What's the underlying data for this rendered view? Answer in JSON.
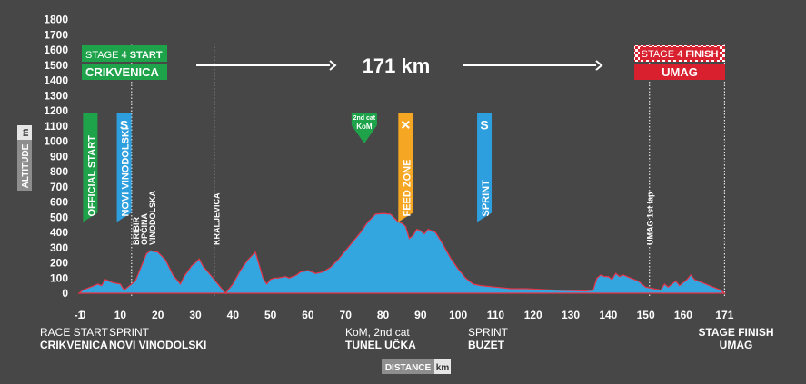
{
  "chart_data": {
    "type": "area",
    "title": "171 km",
    "xlabel": "DISTANCE",
    "xunit": "km",
    "ylabel": "ALTITUDE",
    "yunit": "m",
    "xlim": [
      -1,
      171
    ],
    "ylim": [
      0,
      1800
    ],
    "x_ticks": [
      -1,
      0,
      10,
      20,
      30,
      40,
      50,
      60,
      70,
      80,
      90,
      100,
      110,
      120,
      130,
      140,
      150,
      160,
      171
    ],
    "x_tick_labels": [
      "-1",
      "0",
      "10",
      "20",
      "30",
      "40",
      "50",
      "60",
      "70",
      "80",
      "90",
      "100",
      "110",
      "120",
      "130",
      "140",
      "150",
      "160",
      "171"
    ],
    "y_ticks": [
      0,
      100,
      200,
      300,
      400,
      500,
      600,
      700,
      800,
      900,
      1000,
      1100,
      1200,
      1300,
      1400,
      1500,
      1600,
      1700,
      1800
    ],
    "profile": {
      "x": [
        -1,
        0,
        2,
        4,
        5,
        6,
        8,
        10,
        11,
        12,
        14,
        16,
        17,
        18,
        20,
        22,
        24,
        26,
        27,
        29,
        30,
        31,
        32,
        34,
        36,
        38,
        40,
        42,
        44,
        46,
        48,
        49,
        50,
        51,
        52,
        54,
        55,
        56,
        57,
        58,
        60,
        62,
        64,
        66,
        68,
        70,
        72,
        74,
        76,
        78,
        80,
        82,
        84,
        85,
        86,
        87,
        88,
        89,
        90,
        91,
        92,
        94,
        96,
        98,
        100,
        102,
        103,
        104,
        106,
        108,
        110,
        114,
        118,
        122,
        126,
        130,
        134,
        136,
        137,
        138,
        139,
        140,
        141,
        142,
        143,
        144,
        146,
        148,
        150,
        152,
        154,
        155,
        156,
        157,
        158,
        159,
        160,
        161,
        162,
        163,
        164,
        166,
        168,
        170,
        171
      ],
      "y": [
        0,
        20,
        40,
        60,
        50,
        90,
        70,
        60,
        20,
        40,
        80,
        200,
        260,
        280,
        270,
        220,
        120,
        60,
        110,
        180,
        200,
        225,
        180,
        120,
        60,
        0,
        60,
        150,
        220,
        270,
        100,
        60,
        90,
        100,
        100,
        110,
        100,
        110,
        120,
        140,
        150,
        130,
        140,
        170,
        220,
        280,
        340,
        400,
        470,
        520,
        525,
        520,
        470,
        460,
        440,
        360,
        380,
        420,
        410,
        390,
        420,
        400,
        320,
        230,
        160,
        100,
        80,
        60,
        50,
        45,
        40,
        30,
        30,
        25,
        20,
        18,
        15,
        20,
        100,
        120,
        110,
        110,
        90,
        130,
        110,
        120,
        100,
        80,
        40,
        30,
        20,
        60,
        40,
        60,
        80,
        50,
        70,
        90,
        120,
        90,
        80,
        60,
        40,
        20,
        0
      ]
    },
    "start": {
      "label": "STAGE 4",
      "label_strong": "START",
      "city": "CRIKVENICA"
    },
    "finish": {
      "label": "STAGE 4",
      "label_strong": "FINISH",
      "city": "UMAG"
    },
    "markers": [
      {
        "km": 2,
        "text": "OFFICIAL START",
        "color": "#1ea34a",
        "top": 1185
      },
      {
        "km": 11,
        "text": "NOVI VINODOLSKI",
        "color": "#2e9fde",
        "top": 1185,
        "icon": "S"
      },
      {
        "km": 86,
        "text": "FEED ZONE",
        "color": "#f5a623",
        "top": 1185,
        "icon": "X"
      },
      {
        "km": 107,
        "text": "SPRINT",
        "color": "#2e9fde",
        "top": 1185,
        "icon": "S"
      }
    ],
    "kom": {
      "km": 75,
      "line1": "2nd cat",
      "line2": "KoM",
      "color": "#1ea34a"
    },
    "place_labels": [
      {
        "km": 13.5,
        "lines": [
          "BRIBIR",
          "OPĆINA",
          "VINODOLSKA"
        ]
      },
      {
        "km": 35,
        "lines": [
          "KRALJEVICA"
        ]
      },
      {
        "km": 150.5,
        "lines": [
          "UMAG 1st lap"
        ]
      }
    ],
    "dotted_lines": [
      13,
      35,
      151,
      171
    ],
    "bottom_labels": [
      {
        "km": 0,
        "line1": "RACE START",
        "line2": "CRIKVENICA"
      },
      {
        "km": 11,
        "line1": "SPRINT",
        "line2": "NOVI VINODOLSKI"
      },
      {
        "km": 75,
        "line1": "KoM, 2nd cat",
        "line2": "TUNEL UČKA"
      },
      {
        "km": 107,
        "line1": "SPRINT",
        "line2": "BUZET"
      },
      {
        "km": 171,
        "line1": "",
        "line2": "STAGE FINISH"
      },
      {
        "km": 171,
        "line1": "",
        "line2": "UMAG"
      }
    ],
    "colors": {
      "profile_fill": "#33a6e0",
      "profile_stroke": "#e8344a",
      "start_green": "#1ea34a",
      "finish_red": "#d8202f",
      "axis_badge": "#8e8e8e"
    }
  }
}
